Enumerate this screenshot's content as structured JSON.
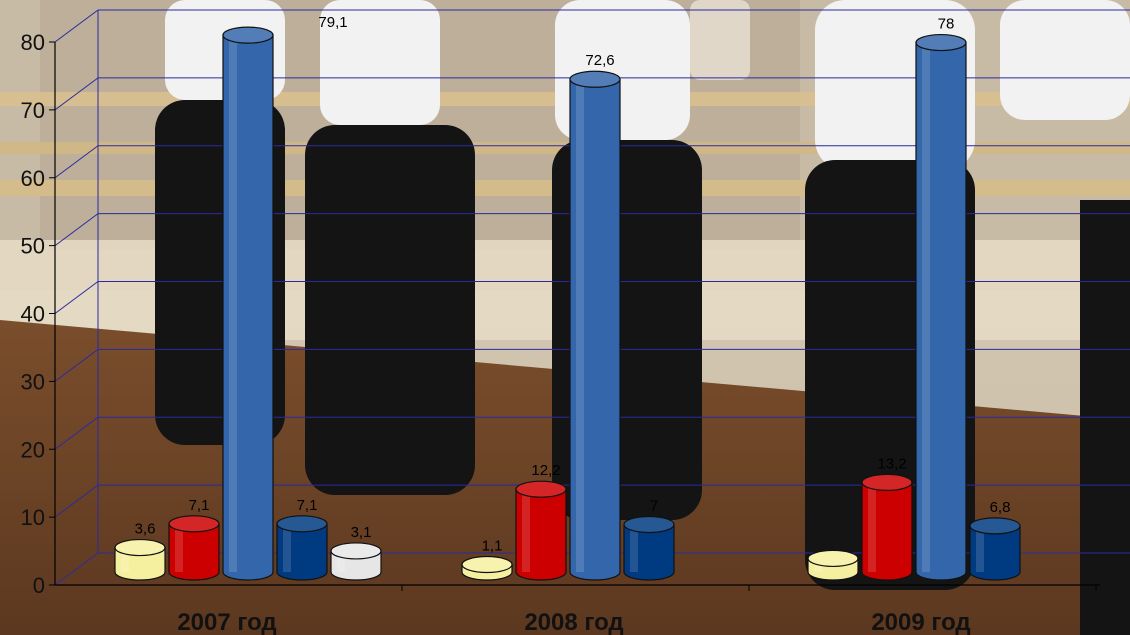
{
  "chart_data": {
    "type": "bar",
    "categories": [
      "2007 год",
      "2008 год",
      "2009 год"
    ],
    "series": [
      {
        "values": [
          3.6,
          1.1,
          2
        ],
        "labels": [
          "3,6",
          "1,1",
          ""
        ],
        "color": "#F5F0A0"
      },
      {
        "values": [
          7.1,
          12.2,
          13.2
        ],
        "labels": [
          "7,1",
          "12,2",
          "13,2"
        ],
        "color": "#CC0000"
      },
      {
        "values": [
          79.1,
          72.6,
          78
        ],
        "labels": [
          "79,1",
          "72,6",
          "78"
        ],
        "color": "#3366AA"
      },
      {
        "values": [
          7.1,
          7,
          6.8
        ],
        "labels": [
          "7,1",
          "7",
          "6,8"
        ],
        "color": "#003A80"
      },
      {
        "values": [
          3.1,
          null,
          null
        ],
        "labels": [
          "3,1",
          "",
          ""
        ],
        "color": "#E6E6E6"
      }
    ],
    "ylim": [
      0,
      80
    ],
    "yticks": [
      "0",
      "10",
      "20",
      "30",
      "40",
      "50",
      "60",
      "70",
      "80"
    ],
    "grid": true,
    "legend": "none",
    "style": "3d cylinder columns over photo background"
  }
}
